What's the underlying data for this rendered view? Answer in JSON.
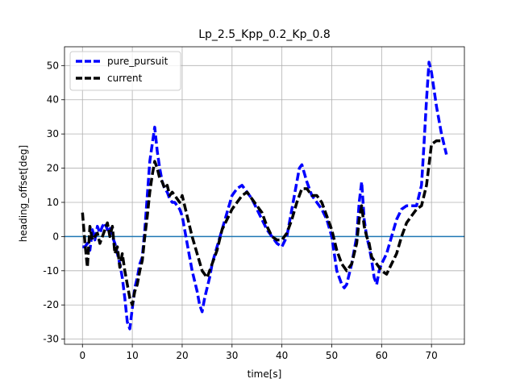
{
  "chart_data": {
    "type": "line",
    "title": "Lp_2.5_Kpp_0.2_Kp_0.8",
    "xlabel": "time[s]",
    "ylabel": "heading_offset[deg]",
    "xlim": [
      -3.6,
      76.6
    ],
    "ylim": [
      -31.5,
      55.5
    ],
    "xticks": [
      0,
      10,
      20,
      30,
      40,
      50,
      60,
      70
    ],
    "yticks": [
      -30,
      -20,
      -10,
      0,
      10,
      20,
      30,
      40,
      50
    ],
    "grid": true,
    "legend": "top-left",
    "reference_line": {
      "y": 0,
      "color": "#1f77b4"
    },
    "series": [
      {
        "name": "pure_pursuit",
        "color": "#0000ff",
        "style": "dashed",
        "x": [
          0,
          0.5,
          1,
          1.5,
          2,
          2.5,
          3,
          3.5,
          4,
          4.5,
          5,
          5.5,
          6,
          6.5,
          7,
          7.5,
          8,
          8.5,
          9,
          9.5,
          10,
          10.5,
          11,
          11.5,
          12,
          12.5,
          13,
          13.5,
          14,
          14.5,
          15,
          15.5,
          16,
          16.5,
          17,
          17.5,
          18,
          18.5,
          19,
          19.5,
          20,
          21,
          22,
          23,
          23.5,
          24,
          24.5,
          25,
          25.5,
          26,
          27,
          28,
          29,
          30,
          31,
          32,
          33,
          34,
          35,
          36,
          37,
          38,
          39,
          40,
          41,
          42,
          43,
          43.5,
          44,
          45,
          46,
          47,
          48,
          49,
          50,
          51,
          52,
          52.5,
          53,
          54,
          55,
          55.5,
          56,
          56.5,
          57,
          57.5,
          58,
          58.5,
          59,
          59.5,
          60,
          61,
          62,
          63,
          64,
          65,
          66,
          67,
          68,
          68.5,
          69,
          69.5,
          70,
          71,
          72,
          73
        ],
        "y": [
          -3,
          -3,
          -2,
          -4,
          2,
          -1,
          3,
          1,
          3,
          4,
          2,
          3,
          0,
          -2,
          -5,
          -8,
          -12,
          -18,
          -25,
          -27,
          -21,
          -15,
          -12,
          -8,
          -6,
          2,
          12,
          22,
          27,
          32,
          25,
          20,
          16,
          14,
          13,
          11,
          10,
          10,
          9,
          8,
          6,
          -2,
          -10,
          -16,
          -20,
          -22,
          -18,
          -15,
          -12,
          -8,
          -3,
          2,
          7,
          12,
          14,
          15,
          13,
          11,
          8,
          5,
          2,
          0,
          -2,
          -3,
          0,
          8,
          16,
          20,
          21,
          16,
          12,
          10,
          8,
          5,
          0,
          -10,
          -14,
          -15,
          -14,
          -8,
          0,
          10,
          16,
          5,
          0,
          -3,
          -7,
          -12,
          -14,
          -10,
          -8,
          -5,
          0,
          5,
          8,
          9,
          9,
          9,
          15,
          27,
          40,
          51,
          48,
          38,
          30,
          24
        ]
      },
      {
        "name": "current",
        "color": "#000000",
        "style": "dashed",
        "x": [
          0,
          0.5,
          1,
          1.5,
          2,
          2.5,
          3,
          3.5,
          4,
          4.5,
          5,
          5.5,
          6,
          6.5,
          7,
          7.5,
          8,
          8.5,
          9,
          9.5,
          10,
          10.5,
          11,
          11.5,
          12,
          12.5,
          13,
          13.5,
          14,
          14.5,
          15,
          15.5,
          16,
          16.5,
          17,
          17.5,
          18,
          18.5,
          19,
          19.5,
          20,
          21,
          22,
          23,
          24,
          24.5,
          25,
          26,
          27,
          28,
          29,
          30,
          31,
          32,
          33,
          34,
          35,
          36,
          37,
          38,
          39,
          40,
          41,
          42,
          43,
          44,
          45,
          46,
          47,
          48,
          49,
          50,
          51,
          52,
          53,
          54,
          55,
          55.5,
          56,
          56.5,
          57,
          57.5,
          58,
          59,
          60,
          61,
          62,
          63,
          64,
          65,
          66,
          67,
          68,
          69,
          70,
          71,
          72
        ],
        "y": [
          7,
          -2,
          -9,
          3,
          -1,
          0,
          1,
          -2,
          0,
          2,
          4,
          0,
          3,
          -5,
          -3,
          -9,
          -5,
          -10,
          -14,
          -18,
          -20,
          -16,
          -14,
          -10,
          -7,
          0,
          6,
          13,
          18,
          22,
          20,
          17,
          16,
          14,
          15,
          12,
          13,
          12,
          11,
          10,
          12,
          6,
          0,
          -5,
          -10,
          -11,
          -12,
          -8,
          -4,
          2,
          5,
          8,
          10,
          12,
          13,
          11,
          9,
          7,
          3,
          0,
          -1,
          -1,
          1,
          5,
          10,
          14,
          14,
          12,
          12,
          10,
          6,
          2,
          -4,
          -8,
          -10,
          -8,
          -2,
          5,
          9,
          3,
          0,
          -2,
          -6,
          -8,
          -10,
          -11,
          -8,
          -5,
          0,
          4,
          6,
          8,
          9,
          15,
          27,
          28,
          28
        ]
      }
    ]
  }
}
